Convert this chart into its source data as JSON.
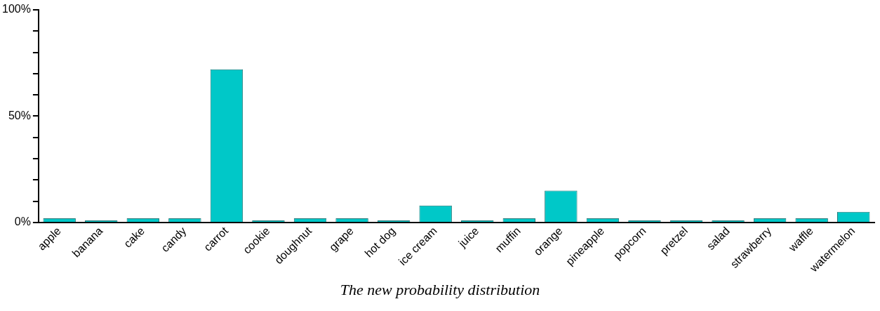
{
  "chart_data": {
    "type": "bar",
    "title": "The new probability distribution",
    "categories": [
      "apple",
      "banana",
      "cake",
      "candy",
      "carrot",
      "cookie",
      "doughnut",
      "grape",
      "hot dog",
      "ice cream",
      "juice",
      "muffin",
      "orange",
      "pineapple",
      "popcorn",
      "pretzel",
      "salad",
      "strawberry",
      "waffle",
      "watermelon"
    ],
    "values": [
      2,
      1,
      2,
      2,
      72,
      1,
      2,
      2,
      1,
      8,
      1,
      2,
      15,
      2,
      1,
      1,
      1,
      2,
      2,
      5
    ],
    "color": "#00c8c8",
    "ylim": [
      0,
      100
    ],
    "yticks": [
      {
        "value": 0,
        "label": "0%"
      },
      {
        "value": 10,
        "label": null
      },
      {
        "value": 20,
        "label": null
      },
      {
        "value": 30,
        "label": null
      },
      {
        "value": 40,
        "label": null
      },
      {
        "value": 50,
        "label": "50%"
      },
      {
        "value": 60,
        "label": null
      },
      {
        "value": 70,
        "label": null
      },
      {
        "value": 80,
        "label": null
      },
      {
        "value": 90,
        "label": null
      },
      {
        "value": 100,
        "label": "100%"
      }
    ],
    "grid": false,
    "legend": false
  }
}
